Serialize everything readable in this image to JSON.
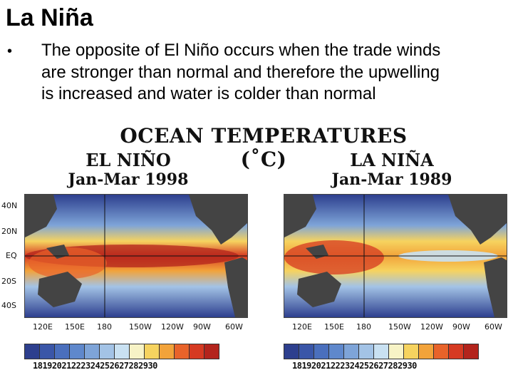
{
  "slide": {
    "title": "La Niña",
    "bullet_lines": [
      "The opposite of El Niño occurs when the trade winds",
      "are stronger than normal and therefore the upwelling",
      "is increased and water is colder than normal"
    ]
  },
  "figure": {
    "title": "OCEAN TEMPERATURES (˚C)",
    "panels": [
      {
        "name": "EL NIÑO",
        "period": "Jan-Mar 1998"
      },
      {
        "name": "LA NIÑA",
        "period": "Jan-Mar 1989"
      }
    ],
    "lat_labels": [
      "40N",
      "20N",
      "EQ",
      "20S",
      "40S"
    ],
    "lon_labels": [
      "120E",
      "150E",
      "180",
      "150W",
      "120W",
      "90W",
      "60W"
    ],
    "scale_values": [
      "18",
      "19",
      "20",
      "21",
      "22",
      "23",
      "24",
      "25",
      "26",
      "27",
      "28",
      "29",
      "30"
    ],
    "scale_colors": [
      "#2d3f8e",
      "#3a56a8",
      "#4a6fbd",
      "#5f88cc",
      "#7ea4d8",
      "#a3c3e6",
      "#c9e1f2",
      "#f7f3c6",
      "#f6d35f",
      "#f2a33a",
      "#e8632a",
      "#d63a22",
      "#b3241c"
    ]
  }
}
